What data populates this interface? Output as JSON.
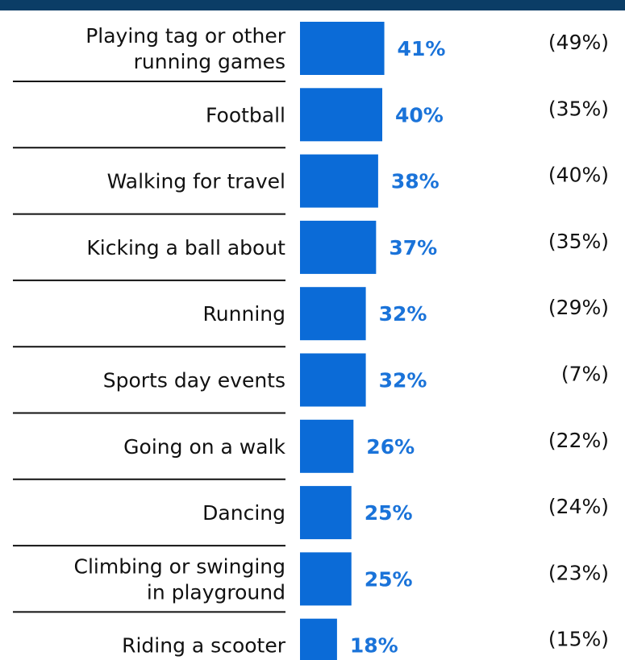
{
  "colors": {
    "bar": "#0b6bd7",
    "value_text": "#1a73d9",
    "top_rule": "#0b3d66",
    "separator": "#111111"
  },
  "chart_data": {
    "type": "bar",
    "orientation": "horizontal",
    "title": "",
    "xlabel": "",
    "ylabel": "",
    "xlim": [
      0,
      100
    ],
    "grid": false,
    "categories": [
      [
        "Playing tag or other",
        "running games"
      ],
      [
        "Football"
      ],
      [
        "Walking for travel"
      ],
      [
        "Kicking a ball about"
      ],
      [
        "Running"
      ],
      [
        "Sports day events"
      ],
      [
        "Going on a walk"
      ],
      [
        "Dancing"
      ],
      [
        "Climbing or swinging",
        "in playground"
      ],
      [
        "Riding a scooter"
      ]
    ],
    "values": [
      41,
      40,
      38,
      37,
      32,
      32,
      26,
      25,
      25,
      18
    ],
    "value_labels": [
      "41%",
      "40%",
      "38%",
      "37%",
      "32%",
      "32%",
      "26%",
      "25%",
      "25%",
      "18%"
    ],
    "comparison_labels": [
      "(49%)",
      "(35%)",
      "(40%)",
      "(35%)",
      "(29%)",
      "(7%)",
      "(22%)",
      "(24%)",
      "(23%)",
      "(15%)"
    ]
  }
}
